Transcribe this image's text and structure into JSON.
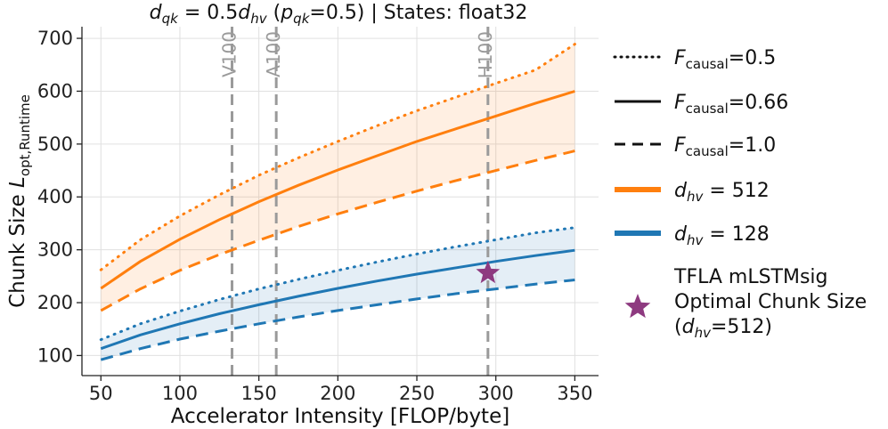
{
  "chart_data": {
    "type": "line",
    "title": {
      "lhs_var": "d",
      "lhs_sub": "qk",
      "eq": " = 0.5",
      "rhs_var": "d",
      "rhs_sub": "hv",
      "paren_open": " (",
      "p_var": "p",
      "p_sub": "qk",
      "p_val": "=0.5)",
      "states": " | States: float32"
    },
    "xlabel": "Accelerator Intensity [FLOP/byte]",
    "ylabel": {
      "prefix": "Chunk Size ",
      "var": "L",
      "sub": "opt,Runtime"
    },
    "xlim": [
      38,
      365
    ],
    "ylim": [
      62,
      722
    ],
    "xticks": [
      50,
      100,
      150,
      200,
      250,
      300,
      350
    ],
    "yticks": [
      100,
      200,
      300,
      400,
      500,
      600,
      700
    ],
    "grid": true,
    "vlines": [
      {
        "label": "V100",
        "x": 133
      },
      {
        "label": "A100",
        "x": 161
      },
      {
        "label": "H100",
        "x": 295
      }
    ],
    "colors": {
      "orange": "#ff7f0e",
      "blue": "#1f77b4",
      "grid": "#e0e0e0",
      "vline": "#9a9a9a",
      "star": "#8e3a80",
      "axis": "#222222"
    },
    "x": [
      50,
      75,
      100,
      125,
      150,
      175,
      200,
      225,
      250,
      275,
      300,
      325,
      350
    ],
    "series": [
      {
        "name": "dhv512-causal0.5",
        "group": "orange",
        "style": "dotted",
        "values": [
          262,
          319,
          364,
          404,
          441,
          474,
          505,
          535,
          563,
          589,
          615,
          640,
          689
        ]
      },
      {
        "name": "dhv512-causal0.66",
        "group": "orange",
        "style": "solid",
        "values": [
          227,
          278,
          320,
          357,
          391,
          422,
          451,
          478,
          505,
          529,
          553,
          577,
          600
        ]
      },
      {
        "name": "dhv512-causal1.0",
        "group": "orange",
        "style": "dashed",
        "values": [
          185,
          226,
          261,
          291,
          318,
          344,
          368,
          390,
          411,
          431,
          450,
          469,
          487
        ]
      },
      {
        "name": "dhv128-causal0.5",
        "group": "blue",
        "style": "dotted",
        "values": [
          130,
          160,
          184,
          206,
          226,
          244,
          261,
          277,
          292,
          306,
          319,
          332,
          342
        ]
      },
      {
        "name": "dhv128-causal0.66",
        "group": "blue",
        "style": "solid",
        "values": [
          113,
          139,
          160,
          179,
          196,
          212,
          227,
          241,
          254,
          266,
          278,
          289,
          299
        ]
      },
      {
        "name": "dhv128-causal1.0",
        "group": "blue",
        "style": "dashed",
        "values": [
          92,
          113,
          131,
          146,
          160,
          173,
          185,
          196,
          207,
          217,
          226,
          235,
          243
        ]
      }
    ],
    "bands": [
      {
        "group": "orange",
        "upper": "dhv512-causal0.5",
        "lower": "dhv512-causal1.0"
      },
      {
        "group": "blue",
        "upper": "dhv128-causal0.5",
        "lower": "dhv128-causal1.0"
      }
    ],
    "marker": {
      "x": 295,
      "y": 256,
      "label": "TFLA mLSTMsig Optimal Chunk Size (dhv=512)"
    },
    "legend": {
      "placement": "right",
      "items": [
        {
          "kind": "line",
          "style": "dotted",
          "color": "#111111",
          "var": "F",
          "sub": "causal",
          "val": "=0.5"
        },
        {
          "kind": "line",
          "style": "solid",
          "color": "#111111",
          "var": "F",
          "sub": "causal",
          "val": "=0.66"
        },
        {
          "kind": "line",
          "style": "dashed",
          "color": "#111111",
          "var": "F",
          "sub": "causal",
          "val": "=1.0"
        },
        {
          "kind": "thick",
          "color": "#ff7f0e",
          "var": "d",
          "sub": "hv",
          "val": " = 512"
        },
        {
          "kind": "thick",
          "color": "#1f77b4",
          "var": "d",
          "sub": "hv",
          "val": " = 128"
        }
      ],
      "star": {
        "line1": "TFLA mLSTMsig",
        "line2": "Optimal Chunk Size",
        "line3_open": "(",
        "line3_var": "d",
        "line3_sub": "hv",
        "line3_close": "=512)"
      }
    }
  }
}
